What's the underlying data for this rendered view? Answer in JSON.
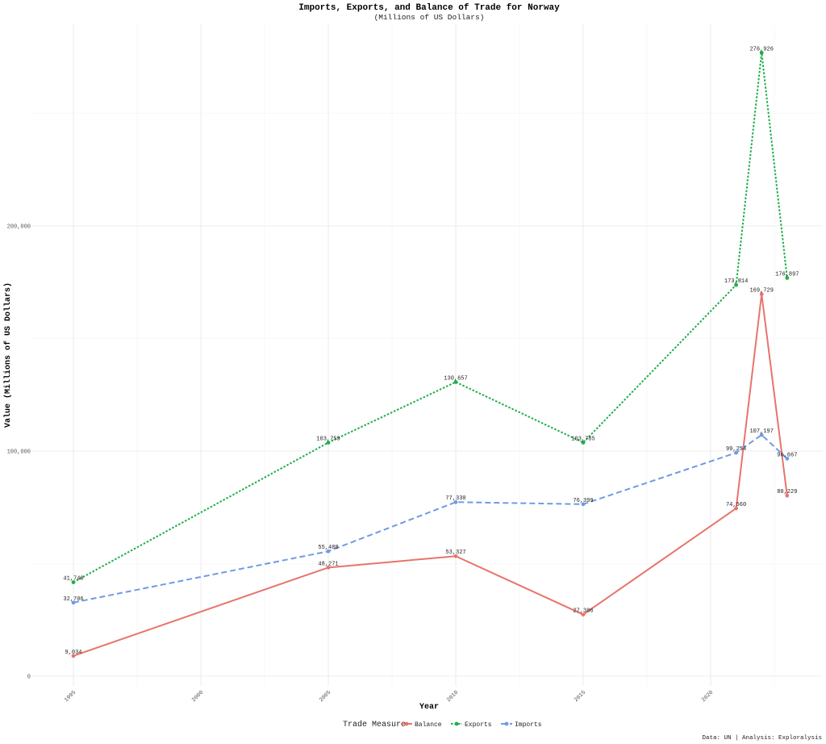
{
  "chart_data": {
    "type": "line",
    "title": "Imports, Exports, and Balance of Trade for Norway",
    "subtitle": "(Millions of US Dollars)",
    "xlabel": "Year",
    "ylabel": "Value (Millions of US Dollars)",
    "x": [
      1995,
      2005,
      2010,
      2015,
      2021,
      2022,
      2023
    ],
    "xlim": [
      1994,
      2024
    ],
    "ylim": [
      0,
      290000
    ],
    "x_ticks": [
      1995,
      2000,
      2005,
      2010,
      2015,
      2020
    ],
    "y_ticks": [
      0,
      100000,
      200000
    ],
    "y_tick_labels": [
      "0",
      "100,000",
      "200,000"
    ],
    "grid": true,
    "legend_title": "Trade Measure",
    "legend_position": "bottom",
    "series": [
      {
        "name": "Balance",
        "color": "#e8746c",
        "dash": "solid",
        "values": [
          9034,
          48271,
          53327,
          27386,
          74560,
          169729,
          80229
        ],
        "labels": [
          "9,034",
          "48,271",
          "53,327",
          "27,386",
          "74,560",
          "169,729",
          "80,229"
        ]
      },
      {
        "name": "Exports",
        "color": "#1fae4a",
        "dash": "dotted",
        "values": [
          41740,
          103759,
          130657,
          103785,
          173814,
          276926,
          176897
        ],
        "labels": [
          "41,740",
          "103,759",
          "130,657",
          "103,785",
          "173,814",
          "276,926",
          "176,897"
        ]
      },
      {
        "name": "Imports",
        "color": "#6f9be3",
        "dash": "dashed",
        "values": [
          32706,
          55488,
          77330,
          76399,
          99254,
          107197,
          96667
        ],
        "labels": [
          "32,706",
          "55,488",
          "77,330",
          "76,399",
          "99,254",
          "107,197",
          "96,667"
        ]
      }
    ],
    "caption": "Data: UN | Analysis: Exploralysis"
  }
}
